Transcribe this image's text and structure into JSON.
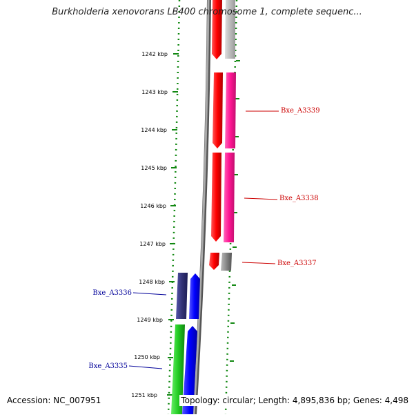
{
  "title": "Burkholderia xenovorans LB400 chromosome 1, complete sequenc...",
  "ticks": [
    "1242 kbp",
    "1243 kbp",
    "1244 kbp",
    "1245 kbp",
    "1246 kbp",
    "1247 kbp",
    "1248 kbp",
    "1249 kbp",
    "1250 kbp",
    "1251 kbp"
  ],
  "genes": [
    {
      "name": "Bxe_A3339",
      "color": "#cc0000"
    },
    {
      "name": "Bxe_A3338",
      "color": "#cc0000"
    },
    {
      "name": "Bxe_A3337",
      "color": "#cc0000"
    },
    {
      "name": "Bxe_A3336",
      "color": "#000099"
    },
    {
      "name": "Bxe_A3335",
      "color": "#000099"
    }
  ],
  "footer": {
    "accession": "Accession: NC_007951",
    "stats": "Topology: circular; Length: 4,895,836 bp; Genes: 4,498"
  },
  "colors": {
    "forward_cds": "#ff0000",
    "forward_other": "#ff1493",
    "forward_gray": "#777777",
    "reverse_cds": "#0000ff",
    "reverse_navy": "#333377",
    "reverse_green": "#22cc22",
    "backbone": "#888888",
    "tick_green": "#118811"
  }
}
